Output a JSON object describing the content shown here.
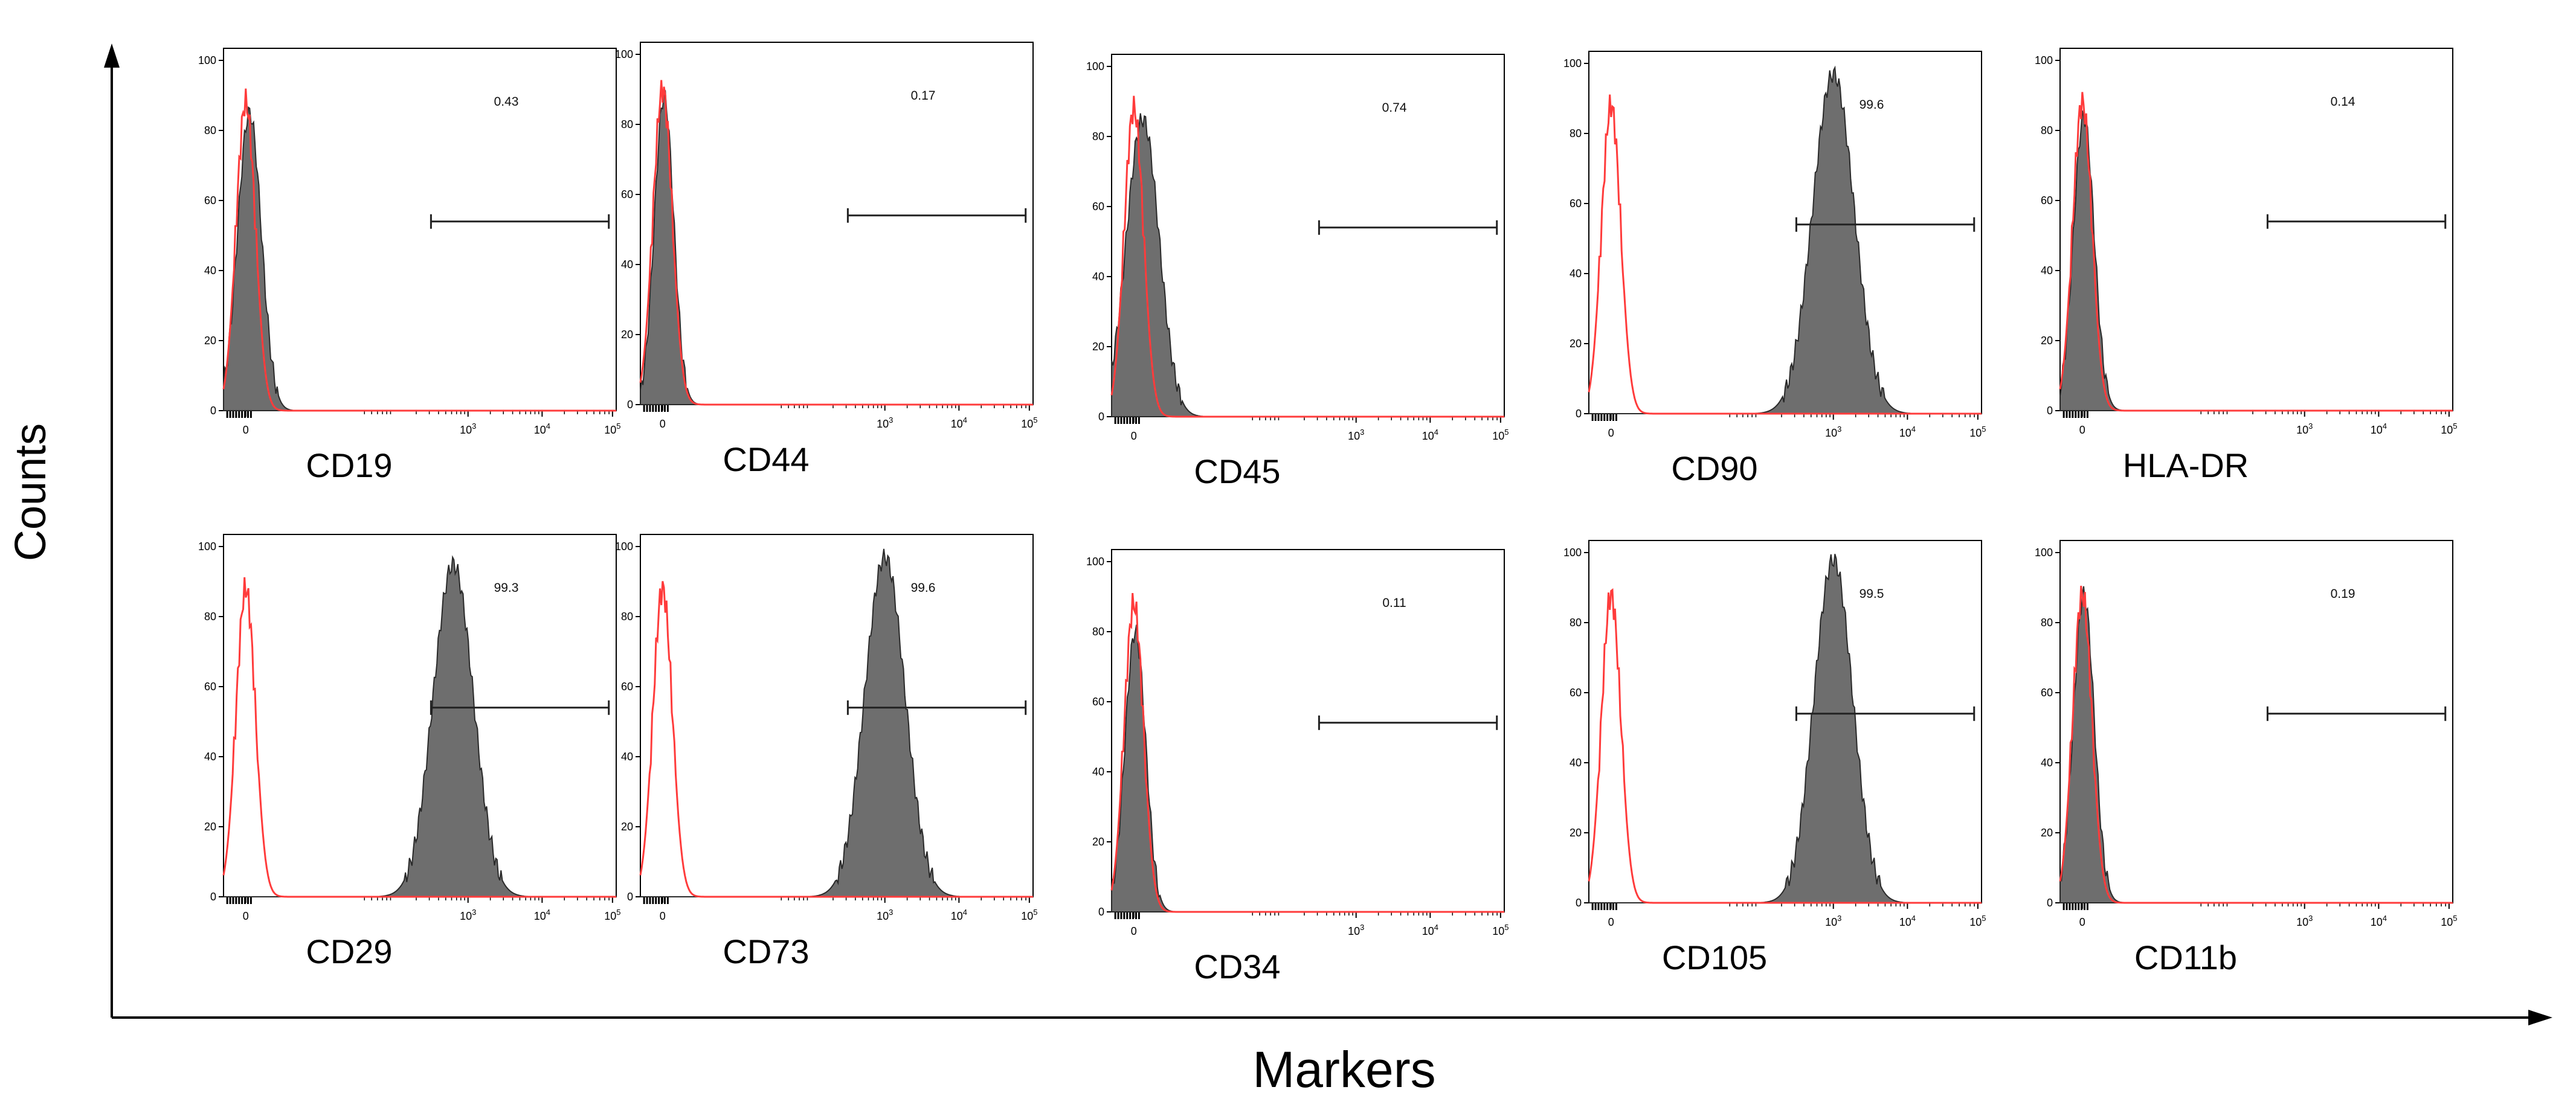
{
  "figure": {
    "y_axis_label": "Counts",
    "x_axis_label": "Markers"
  },
  "colors": {
    "control_line": "#ff3b3b",
    "stained_fill": "#6e6e6e",
    "stained_stroke": "#2a2a2a",
    "axis": "#000000",
    "gate": "#222222"
  },
  "chart_data": [
    {
      "type": "area",
      "title": "CD19",
      "percent_label": "0.43",
      "control_peak_log10": 0.0,
      "stained_peak_log10": 0.05,
      "stained_peak_height": 85,
      "stained_width": 0.16,
      "control_peak_height": 88,
      "y_ticks": [
        "0",
        "20",
        "40",
        "60",
        "80",
        "100"
      ],
      "x_ticks": [
        "0",
        "10^3",
        "10^4",
        "10^5"
      ],
      "xlim": [
        -0.3,
        5
      ],
      "ylim": [
        0,
        100
      ],
      "gate_range_log10": [
        2.5,
        4.9
      ],
      "gate_level": 54
    },
    {
      "type": "area",
      "title": "CD44",
      "percent_label": "0.17",
      "control_peak_log10": 0.0,
      "stained_peak_log10": 0.02,
      "stained_peak_height": 88,
      "stained_width": 0.13,
      "control_peak_height": 90,
      "y_ticks": [
        "0",
        "20",
        "40",
        "60",
        "80",
        "100"
      ],
      "x_ticks": [
        "0",
        "10^3",
        "10^4",
        "10^5"
      ],
      "xlim": [
        -0.3,
        5
      ],
      "ylim": [
        0,
        100
      ],
      "gate_range_log10": [
        2.5,
        4.9
      ],
      "gate_level": 54
    },
    {
      "type": "area",
      "title": "CD45",
      "percent_label": "0.74",
      "control_peak_log10": 0.0,
      "stained_peak_log10": 0.12,
      "stained_peak_height": 85,
      "stained_width": 0.22,
      "control_peak_height": 88,
      "y_ticks": [
        "0",
        "20",
        "40",
        "60",
        "80",
        "100"
      ],
      "x_ticks": [
        "0",
        "10^3",
        "10^4",
        "10^5"
      ],
      "xlim": [
        -0.3,
        5
      ],
      "ylim": [
        0,
        100
      ],
      "gate_range_log10": [
        2.5,
        4.9
      ],
      "gate_level": 54
    },
    {
      "type": "area",
      "title": "CD90",
      "percent_label": "99.6",
      "control_peak_log10": 0.0,
      "stained_peak_log10": 3.0,
      "stained_peak_height": 97,
      "stained_width": 0.28,
      "control_peak_height": 88,
      "y_ticks": [
        "0",
        "20",
        "40",
        "60",
        "80",
        "100"
      ],
      "x_ticks": [
        "0",
        "10^3",
        "10^4",
        "10^5"
      ],
      "xlim": [
        -0.3,
        5
      ],
      "ylim": [
        0,
        100
      ],
      "gate_range_log10": [
        2.5,
        4.9
      ],
      "gate_level": 54
    },
    {
      "type": "area",
      "title": "HLA-DR",
      "percent_label": "0.14",
      "control_peak_log10": 0.0,
      "stained_peak_log10": 0.02,
      "stained_peak_height": 84,
      "stained_width": 0.14,
      "control_peak_height": 88,
      "y_ticks": [
        "0",
        "20",
        "40",
        "60",
        "80",
        "100"
      ],
      "x_ticks": [
        "0",
        "10^3",
        "10^4",
        "10^5"
      ],
      "xlim": [
        -0.3,
        5
      ],
      "ylim": [
        0,
        100
      ],
      "gate_range_log10": [
        2.5,
        4.9
      ],
      "gate_level": 54
    },
    {
      "type": "area",
      "title": "CD29",
      "percent_label": "99.3",
      "control_peak_log10": 0.0,
      "stained_peak_log10": 2.8,
      "stained_peak_height": 95,
      "stained_width": 0.27,
      "control_peak_height": 88,
      "y_ticks": [
        "0",
        "20",
        "40",
        "60",
        "80",
        "100"
      ],
      "x_ticks": [
        "0",
        "10^3",
        "10^4",
        "10^5"
      ],
      "xlim": [
        -0.3,
        5
      ],
      "ylim": [
        0,
        100
      ],
      "gate_range_log10": [
        2.5,
        4.9
      ],
      "gate_level": 54
    },
    {
      "type": "area",
      "title": "CD73",
      "percent_label": "99.6",
      "control_peak_log10": 0.0,
      "stained_peak_log10": 3.0,
      "stained_peak_height": 97,
      "stained_width": 0.27,
      "control_peak_height": 88,
      "y_ticks": [
        "0",
        "20",
        "40",
        "60",
        "80",
        "100"
      ],
      "x_ticks": [
        "0",
        "10^3",
        "10^4",
        "10^5"
      ],
      "xlim": [
        -0.3,
        5
      ],
      "ylim": [
        0,
        100
      ],
      "gate_range_log10": [
        2.5,
        4.9
      ],
      "gate_level": 54
    },
    {
      "type": "area",
      "title": "CD34",
      "percent_label": "0.11",
      "control_peak_log10": 0.0,
      "stained_peak_log10": 0.02,
      "stained_peak_height": 80,
      "stained_width": 0.14,
      "control_peak_height": 88,
      "y_ticks": [
        "0",
        "20",
        "40",
        "60",
        "80",
        "100"
      ],
      "x_ticks": [
        "0",
        "10^3",
        "10^4",
        "10^5"
      ],
      "xlim": [
        -0.3,
        5
      ],
      "ylim": [
        0,
        100
      ],
      "gate_range_log10": [
        2.5,
        4.9
      ],
      "gate_level": 54
    },
    {
      "type": "area",
      "title": "CD105",
      "percent_label": "99.5",
      "control_peak_log10": 0.0,
      "stained_peak_log10": 3.0,
      "stained_peak_height": 98,
      "stained_width": 0.26,
      "control_peak_height": 88,
      "y_ticks": [
        "0",
        "20",
        "40",
        "60",
        "80",
        "100"
      ],
      "x_ticks": [
        "0",
        "10^3",
        "10^4",
        "10^5"
      ],
      "xlim": [
        -0.3,
        5
      ],
      "ylim": [
        0,
        100
      ],
      "gate_range_log10": [
        2.5,
        4.9
      ],
      "gate_level": 54
    },
    {
      "type": "area",
      "title": "CD11b",
      "percent_label": "0.19",
      "control_peak_log10": 0.0,
      "stained_peak_log10": 0.02,
      "stained_peak_height": 88,
      "stained_width": 0.14,
      "control_peak_height": 88,
      "y_ticks": [
        "0",
        "20",
        "40",
        "60",
        "80",
        "100"
      ],
      "x_ticks": [
        "0",
        "10^3",
        "10^4",
        "10^5"
      ],
      "xlim": [
        -0.3,
        5
      ],
      "ylim": [
        0,
        100
      ],
      "gate_range_log10": [
        2.5,
        4.9
      ],
      "gate_level": 54
    }
  ]
}
